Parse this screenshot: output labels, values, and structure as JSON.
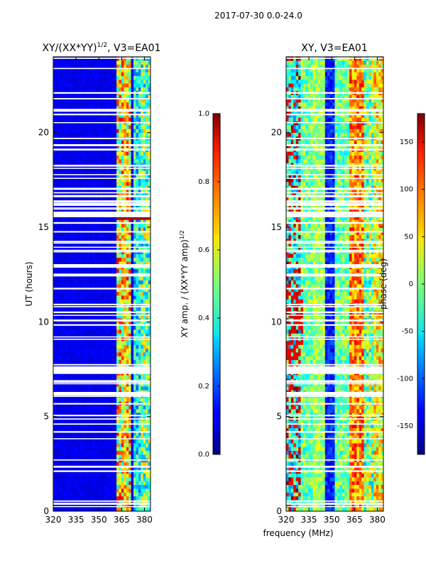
{
  "suptitle": "2017-07-30 0.0-24.0",
  "chart_data": [
    {
      "type": "heatmap",
      "title_main": "XY/(XX*YY)",
      "title_sup": "1/2",
      "title_rest": ", V3=EA01",
      "xlabel": "",
      "ylabel": "UT (hours)",
      "xlim": [
        320,
        384
      ],
      "ylim": [
        0,
        24
      ],
      "xticks": [
        "320",
        "335",
        "350",
        "365",
        "380"
      ],
      "yticks": [
        "0",
        "5",
        "10",
        "15",
        "20"
      ],
      "colorbar": {
        "label_main": "XY amp. / (XX*YY amp)",
        "label_sup": "1/2",
        "range": [
          0.0,
          1.0
        ],
        "ticks": [
          "0.0",
          "0.2",
          "0.4",
          "0.6",
          "0.8",
          "1.0"
        ],
        "colormap": "jet"
      },
      "features": "Mostly low normalized amplitude (~0.1) across 320-362 MHz; elevated amplitudes (0.4-0.9) in vertical bands near 362-372 MHz and around 378-383 MHz; horizontal white gaps of missing data, largest near 7.2-7.6 h."
    },
    {
      "type": "heatmap",
      "title": "XY, V3=EA01",
      "xlabel": "frequency (MHz)",
      "ylabel": "",
      "xlim": [
        320,
        384
      ],
      "ylim": [
        0,
        24
      ],
      "xticks": [
        "320",
        "335",
        "350",
        "365",
        "380"
      ],
      "yticks": [
        "0",
        "5",
        "10",
        "15",
        "20"
      ],
      "colorbar": {
        "label": "phase (deg)",
        "range": [
          -180,
          180
        ],
        "ticks": [
          "-150",
          "-100",
          "-50",
          "0",
          "50",
          "100",
          "150"
        ],
        "colormap": "jet"
      },
      "features": "Phase in vertical banded structure; dark blue band near 348-350 MHz, cyan/green bands 340-345 and 355-362 MHz, red/yellow near 365-372 MHz; noisy red speckle at low frequency; same horizontal data gaps."
    }
  ]
}
